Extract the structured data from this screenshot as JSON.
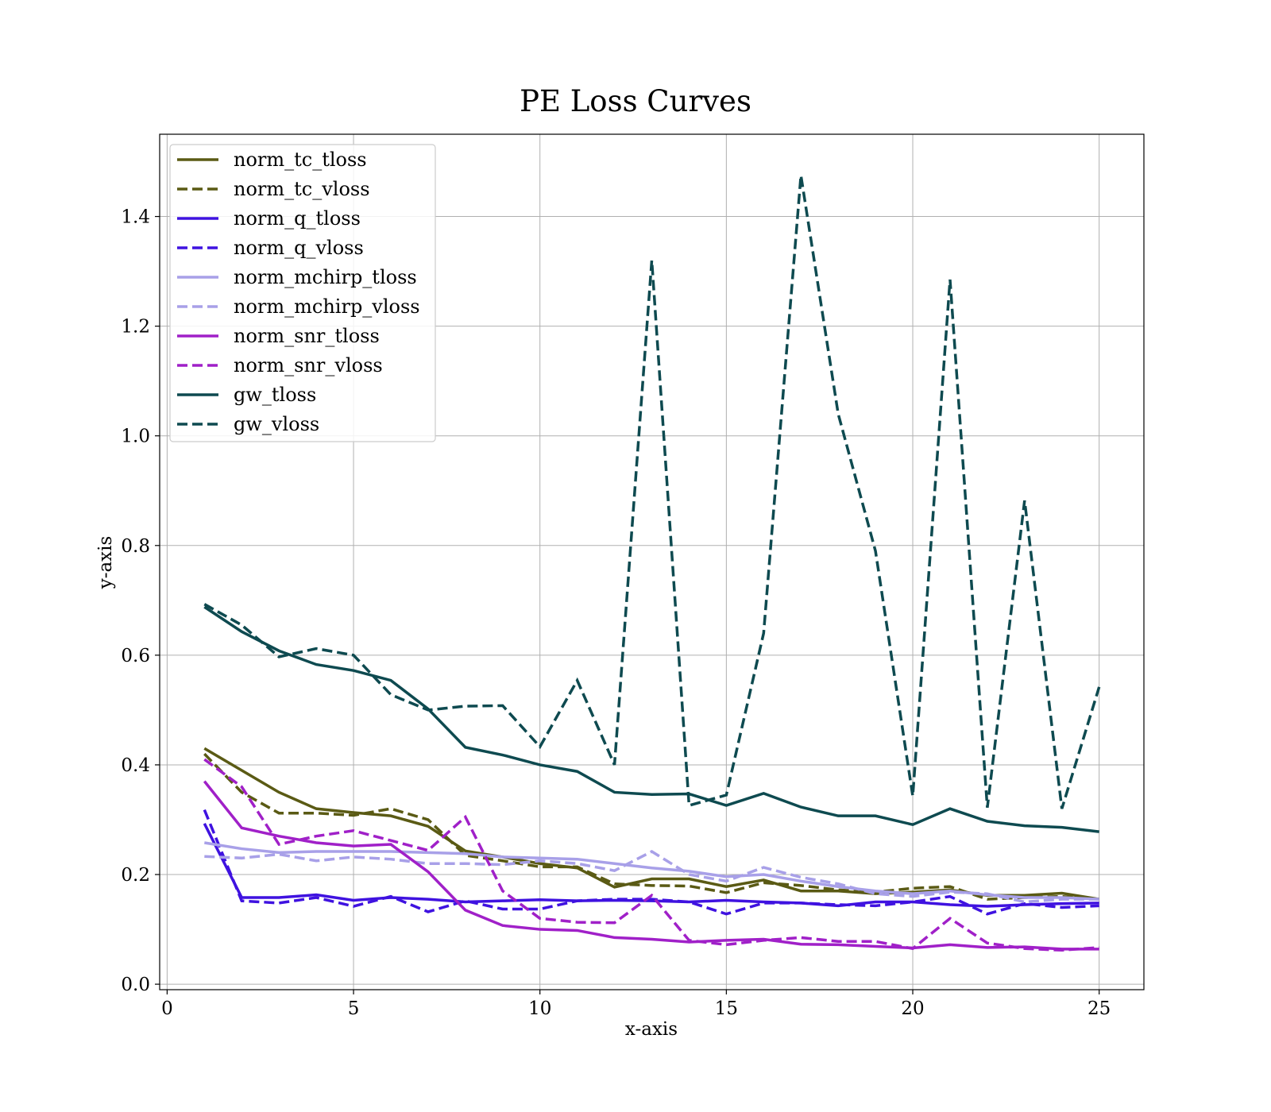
{
  "chart_data": {
    "type": "line",
    "title": "PE Loss Curves",
    "xlabel": "x-axis",
    "ylabel": "y-axis",
    "xlim": [
      -0.2,
      26.2
    ],
    "ylim": [
      -0.01,
      1.55
    ],
    "xticks": [
      0,
      5,
      10,
      15,
      20,
      25
    ],
    "yticks": [
      0.0,
      0.2,
      0.4,
      0.6,
      0.8,
      1.0,
      1.2,
      1.4
    ],
    "xtick_labels": [
      "0",
      "5",
      "10",
      "15",
      "20",
      "25"
    ],
    "ytick_labels": [
      "0.0",
      "0.2",
      "0.4",
      "0.6",
      "0.8",
      "1.0",
      "1.2",
      "1.4"
    ],
    "grid": true,
    "legend_position": "top-left",
    "x": [
      1,
      2,
      3,
      4,
      5,
      6,
      7,
      8,
      9,
      10,
      11,
      12,
      13,
      14,
      15,
      16,
      17,
      18,
      19,
      20,
      21,
      22,
      23,
      24,
      25
    ],
    "series": [
      {
        "name": "norm_tc_tloss",
        "color": "#5a5a14",
        "dash": "solid",
        "values": [
          0.43,
          0.39,
          0.35,
          0.32,
          0.313,
          0.307,
          0.288,
          0.243,
          0.232,
          0.22,
          0.212,
          0.177,
          0.192,
          0.192,
          0.178,
          0.19,
          0.17,
          0.17,
          0.165,
          0.168,
          0.172,
          0.162,
          0.162,
          0.166,
          0.155
        ]
      },
      {
        "name": "norm_tc_vloss",
        "color": "#5a5a14",
        "dash": "dashed",
        "values": [
          0.42,
          0.35,
          0.312,
          0.312,
          0.308,
          0.32,
          0.3,
          0.235,
          0.225,
          0.214,
          0.214,
          0.183,
          0.18,
          0.179,
          0.167,
          0.185,
          0.18,
          0.172,
          0.168,
          0.175,
          0.178,
          0.155,
          0.158,
          0.16,
          0.155
        ]
      },
      {
        "name": "norm_q_tloss",
        "color": "#3f12e0",
        "dash": "solid",
        "values": [
          0.293,
          0.158,
          0.158,
          0.163,
          0.153,
          0.158,
          0.155,
          0.15,
          0.152,
          0.154,
          0.152,
          0.153,
          0.152,
          0.15,
          0.153,
          0.15,
          0.148,
          0.143,
          0.15,
          0.15,
          0.145,
          0.142,
          0.145,
          0.147,
          0.148
        ]
      },
      {
        "name": "norm_q_vloss",
        "color": "#3f12e0",
        "dash": "dashed",
        "values": [
          0.318,
          0.152,
          0.148,
          0.158,
          0.142,
          0.16,
          0.132,
          0.152,
          0.137,
          0.137,
          0.152,
          0.155,
          0.155,
          0.15,
          0.128,
          0.148,
          0.148,
          0.145,
          0.143,
          0.15,
          0.16,
          0.128,
          0.147,
          0.14,
          0.143
        ]
      },
      {
        "name": "norm_mchirp_tloss",
        "color": "#a8a0e8",
        "dash": "solid",
        "values": [
          0.258,
          0.247,
          0.24,
          0.242,
          0.242,
          0.242,
          0.24,
          0.238,
          0.232,
          0.23,
          0.228,
          0.22,
          0.212,
          0.206,
          0.196,
          0.2,
          0.188,
          0.178,
          0.17,
          0.165,
          0.17,
          0.163,
          0.158,
          0.158,
          0.155
        ]
      },
      {
        "name": "norm_mchirp_vloss",
        "color": "#a8a0e8",
        "dash": "dashed",
        "values": [
          0.233,
          0.23,
          0.237,
          0.225,
          0.232,
          0.228,
          0.22,
          0.22,
          0.218,
          0.225,
          0.22,
          0.207,
          0.242,
          0.2,
          0.188,
          0.213,
          0.195,
          0.183,
          0.165,
          0.16,
          0.168,
          0.165,
          0.15,
          0.155,
          0.155
        ]
      },
      {
        "name": "norm_snr_tloss",
        "color": "#a020c8",
        "dash": "solid",
        "values": [
          0.37,
          0.285,
          0.27,
          0.258,
          0.252,
          0.255,
          0.205,
          0.135,
          0.107,
          0.1,
          0.098,
          0.085,
          0.082,
          0.077,
          0.08,
          0.082,
          0.073,
          0.072,
          0.069,
          0.066,
          0.072,
          0.067,
          0.068,
          0.064,
          0.064
        ]
      },
      {
        "name": "norm_snr_vloss",
        "color": "#a020c8",
        "dash": "dashed",
        "values": [
          0.41,
          0.36,
          0.255,
          0.27,
          0.28,
          0.262,
          0.244,
          0.305,
          0.17,
          0.12,
          0.113,
          0.112,
          0.162,
          0.08,
          0.072,
          0.08,
          0.085,
          0.078,
          0.078,
          0.065,
          0.12,
          0.075,
          0.065,
          0.062,
          0.067
        ]
      },
      {
        "name": "gw_tloss",
        "color": "#0e4a50",
        "dash": "solid",
        "values": [
          0.688,
          0.643,
          0.608,
          0.583,
          0.572,
          0.554,
          0.502,
          0.432,
          0.418,
          0.4,
          0.388,
          0.35,
          0.346,
          0.347,
          0.326,
          0.348,
          0.323,
          0.307,
          0.307,
          0.291,
          0.32,
          0.297,
          0.289,
          0.286,
          0.278
        ]
      },
      {
        "name": "gw_vloss",
        "color": "#0e4a50",
        "dash": "dashed",
        "values": [
          0.693,
          0.655,
          0.597,
          0.612,
          0.6,
          0.528,
          0.5,
          0.507,
          0.508,
          0.433,
          0.554,
          0.4,
          1.32,
          0.326,
          0.345,
          0.64,
          1.475,
          1.04,
          0.79,
          0.343,
          1.285,
          0.322,
          0.882,
          0.32,
          0.542
        ]
      }
    ]
  }
}
